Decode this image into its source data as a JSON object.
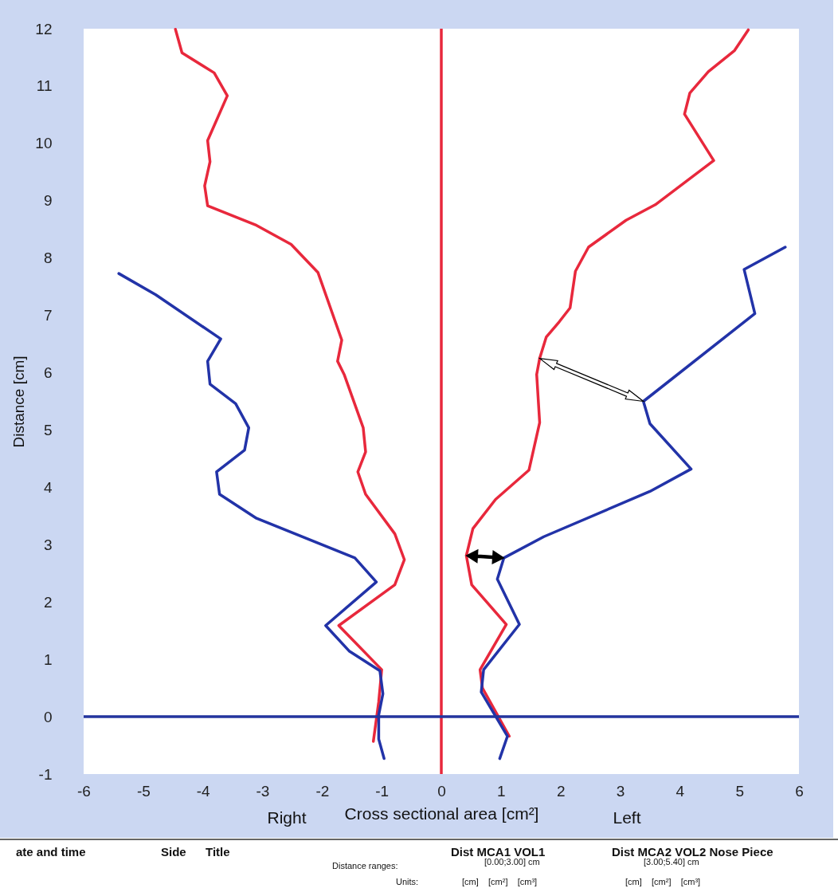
{
  "chart_data": {
    "type": "line",
    "xlabel": "Cross sectional area [cm²]",
    "ylabel": "Distance [cm]",
    "xlim": [
      -6,
      6
    ],
    "ylim": [
      -1,
      12
    ],
    "xticks": [
      -6,
      -5,
      -4,
      -3,
      -2,
      -1,
      0,
      1,
      2,
      3,
      4,
      5,
      6
    ],
    "yticks": [
      -1,
      0,
      1,
      2,
      3,
      4,
      5,
      6,
      7,
      8,
      9,
      10,
      11,
      12
    ],
    "series": [
      {
        "color": "#e8283c",
        "x": [
          -4.46,
          -4.35,
          -3.81,
          -3.59,
          -3.92,
          -3.88,
          -3.97,
          -3.92,
          -3.1,
          -2.52,
          -2.07,
          -1.67,
          -1.74,
          -1.63,
          -1.31,
          -1.27,
          -1.4,
          -1.27,
          -0.78,
          -0.62,
          -0.78,
          -1.72,
          -1.0,
          -1.05,
          -1.14
        ],
        "values": [
          11.99,
          11.58,
          11.23,
          10.83,
          10.05,
          9.68,
          9.26,
          8.91,
          8.57,
          8.24,
          7.75,
          6.57,
          6.2,
          5.97,
          5.04,
          4.62,
          4.27,
          3.88,
          3.19,
          2.74,
          2.3,
          1.59,
          0.82,
          0.26,
          -0.43
        ]
      },
      {
        "color": "#e8283c",
        "x": [
          5.15,
          4.92,
          4.48,
          4.17,
          4.08,
          4.57,
          3.59,
          3.1,
          2.47,
          2.25,
          2.16,
          1.98,
          1.76,
          1.65,
          1.6,
          1.65,
          1.47,
          0.91,
          0.53,
          0.42,
          0.51,
          1.09,
          0.65,
          0.69,
          1.14
        ],
        "values": [
          11.98,
          11.62,
          11.25,
          10.88,
          10.51,
          9.7,
          8.93,
          8.66,
          8.19,
          7.77,
          7.13,
          6.89,
          6.62,
          6.25,
          5.97,
          5.13,
          4.3,
          3.79,
          3.28,
          2.81,
          2.3,
          1.61,
          0.82,
          0.5,
          -0.34
        ]
      },
      {
        "color": "#2233a8",
        "x": [
          -5.41,
          -4.79,
          -3.7,
          -3.92,
          -3.88,
          -3.45,
          -3.23,
          -3.3,
          -3.77,
          -3.72,
          -3.1,
          -1.45,
          -1.09,
          -1.94,
          -1.54,
          -1.03,
          -0.98,
          -1.05,
          -1.05,
          -0.96
        ],
        "values": [
          7.73,
          7.36,
          6.59,
          6.2,
          5.8,
          5.46,
          5.04,
          4.65,
          4.27,
          3.88,
          3.46,
          2.77,
          2.35,
          1.59,
          1.14,
          0.8,
          0.4,
          0.03,
          -0.39,
          -0.73
        ]
      },
      {
        "color": "#2233a8",
        "x": [
          5.77,
          5.08,
          5.26,
          3.39,
          3.5,
          4.19,
          3.5,
          1.72,
          1.05,
          0.94,
          1.31,
          0.71,
          0.67,
          1.11,
          0.98
        ],
        "values": [
          8.19,
          7.8,
          7.03,
          5.5,
          5.11,
          4.32,
          3.93,
          3.14,
          2.77,
          2.4,
          1.61,
          0.82,
          0.43,
          -0.34,
          -0.73
        ]
      }
    ],
    "ref_lines": [
      {
        "axis": "x",
        "value": 0,
        "color": "#e8283c"
      },
      {
        "axis": "y",
        "value": 0,
        "color": "#23349e"
      }
    ],
    "annotations": [
      "Right",
      "Left",
      "ate and time",
      "Side",
      "Title",
      "Dist MCA1 VOL1",
      "Dist MCA2 VOL2 Nose Piece",
      "Distance ranges:",
      "[0.00;3.00] cm",
      "[3.00;5.40] cm",
      "Units:",
      "[cm]    [cm²]    [cm³]",
      "[cm]    [cm²]    [cm³]"
    ]
  }
}
